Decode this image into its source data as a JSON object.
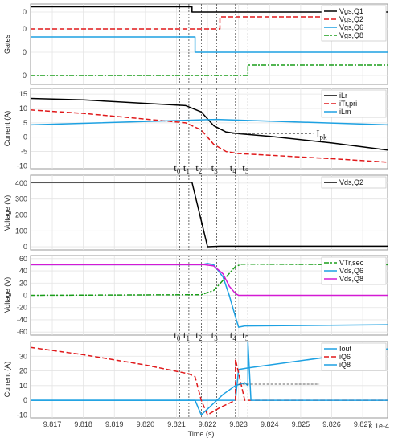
{
  "chart_data": [
    {
      "type": "line",
      "ylabel": "Gates",
      "ylim": [
        0,
        1
      ],
      "yticks": [
        "0",
        "0",
        "0",
        "0"
      ],
      "grid": true,
      "legend": "top-right",
      "series": [
        {
          "name": "Vgs,Q1",
          "color": "#000000",
          "dash": "",
          "x": [
            9.8163,
            9.8215,
            9.8215,
            9.8278
          ],
          "y": [
            0.965,
            0.965,
            0.9,
            0.9
          ]
        },
        {
          "name": "Vgs,Q2",
          "color": "#e0191b",
          "dash": "6,3",
          "x": [
            9.8163,
            9.8224,
            9.8224,
            9.8278
          ],
          "y": [
            0.69,
            0.69,
            0.84,
            0.84
          ]
        },
        {
          "name": "Vgs,Q6",
          "color": "#1da1e2",
          "dash": "",
          "x": [
            9.8163,
            9.8216,
            9.8216,
            9.8278
          ],
          "y": [
            0.59,
            0.59,
            0.4,
            0.4
          ]
        },
        {
          "name": "Vgs,Q8",
          "color": "#1a9e1a",
          "dash": "6,2,2,2",
          "x": [
            9.8163,
            9.8233,
            9.8233,
            9.8278
          ],
          "y": [
            0.11,
            0.11,
            0.24,
            0.24
          ]
        }
      ]
    },
    {
      "type": "line",
      "ylabel": "Current (A)",
      "ylim": [
        -11,
        17
      ],
      "yticks": [
        -10,
        -5,
        0,
        5,
        10,
        15
      ],
      "grid": true,
      "legend": "top-right",
      "annotations": [
        {
          "text": "I",
          "sub": "pk"
        }
      ],
      "series": [
        {
          "name": "iLr",
          "color": "#000000",
          "dash": "",
          "x": [
            9.8163,
            9.818,
            9.82,
            9.8213,
            9.8218,
            9.8222,
            9.8226,
            9.823,
            9.824,
            9.826,
            9.8278
          ],
          "y": [
            13.5,
            13.0,
            11.8,
            11.0,
            8.8,
            4.0,
            1.8,
            1.2,
            0.3,
            -2.0,
            -4.5
          ]
        },
        {
          "name": "iTr,pri",
          "color": "#e0191b",
          "dash": "6,3",
          "x": [
            9.8163,
            9.818,
            9.82,
            9.8213,
            9.8218,
            9.8222,
            9.8226,
            9.823,
            9.824,
            9.826,
            9.8278
          ],
          "y": [
            9.5,
            8.3,
            6.3,
            5.0,
            2.5,
            -2.5,
            -5.0,
            -5.7,
            -6.3,
            -7.5,
            -8.7
          ]
        },
        {
          "name": "iLm",
          "color": "#1da1e2",
          "dash": "",
          "x": [
            9.8163,
            9.8223,
            9.8278
          ],
          "y": [
            4.3,
            6.2,
            4.3
          ]
        }
      ]
    },
    {
      "type": "line",
      "ylabel": "Voltage (V)",
      "ylim": [
        -20,
        450
      ],
      "yticks": [
        0,
        100,
        200,
        300,
        400
      ],
      "grid": true,
      "legend": "top-right",
      "series": [
        {
          "name": "Vds,Q2",
          "color": "#000000",
          "dash": "",
          "x": [
            9.8163,
            9.8215,
            9.822,
            9.8224,
            9.8278
          ],
          "y": [
            405,
            405,
            0,
            3,
            3
          ]
        }
      ]
    },
    {
      "type": "line",
      "ylabel": "Voltage (V)",
      "ylim": [
        -65,
        65
      ],
      "yticks": [
        -60,
        -40,
        -20,
        0,
        20,
        40,
        60
      ],
      "grid": true,
      "legend": "top-right",
      "series": [
        {
          "name": "VTr,sec",
          "color": "#1a9e1a",
          "dash": "6,2,2,2",
          "x": [
            9.8163,
            9.8218,
            9.8222,
            9.8226,
            9.8229,
            9.8231,
            9.8278
          ],
          "y": [
            0,
            1,
            8,
            30,
            47,
            51,
            50
          ]
        },
        {
          "name": "Vds,Q6",
          "color": "#1da1e2",
          "dash": "",
          "x": [
            9.8163,
            9.8218,
            9.822,
            9.8222,
            9.8225,
            9.8227,
            9.8229,
            9.823,
            9.8232,
            9.8278
          ],
          "y": [
            50,
            50,
            52,
            50,
            30,
            0,
            -35,
            -52,
            -50,
            -48
          ]
        },
        {
          "name": "Vds,Q8",
          "color": "#d41ad4",
          "dash": "",
          "x": [
            9.8163,
            9.8219,
            9.8222,
            9.8225,
            9.8227,
            9.8229,
            9.823,
            9.8278
          ],
          "y": [
            50,
            50,
            48,
            35,
            15,
            3,
            0,
            0
          ]
        }
      ]
    },
    {
      "type": "line",
      "ylabel": "Current (A)",
      "ylim": [
        -12,
        40
      ],
      "yticks": [
        -10,
        0,
        10,
        20,
        30
      ],
      "grid": true,
      "legend": "top-right",
      "xlabel": "Time (s)",
      "xticks": [
        "9.817",
        "9.818",
        "9.819",
        "9.820",
        "9.821",
        "9.822",
        "9.823",
        "9.824",
        "9.825",
        "9.826",
        "9.827"
      ],
      "x_exponent": "× 1e-4",
      "series": [
        {
          "name": "Iout",
          "color": "#1da1e2",
          "dash": "",
          "x": [
            9.8163,
            9.8229,
            9.823,
            9.8233,
            9.8278
          ],
          "y": [
            0,
            0,
            21,
            22,
            35
          ]
        },
        {
          "name": "iQ6",
          "color": "#e0191b",
          "dash": "6,3",
          "x": [
            9.8163,
            9.818,
            9.82,
            9.8214,
            9.8216,
            9.8218,
            9.822,
            9.8224,
            9.8229,
            9.8229,
            9.8232,
            9.8278
          ],
          "y": [
            36,
            31,
            24,
            18,
            16,
            0,
            -10,
            -5,
            0,
            28,
            0,
            0
          ]
        },
        {
          "name": "iQ8",
          "color": "#1da1e2",
          "dash": "",
          "x": [
            9.8163,
            9.8216,
            9.8218,
            9.822,
            9.8225,
            9.8229,
            9.8232,
            9.8233,
            9.8233,
            9.8234,
            9.8278
          ],
          "y": [
            0,
            0,
            -10,
            -6,
            4,
            10,
            12,
            10,
            40,
            0,
            0
          ]
        }
      ]
    }
  ],
  "time_markers": {
    "labels": [
      "t",
      "t",
      "t",
      "t",
      "t",
      "t"
    ],
    "subs": [
      "0",
      "1",
      "2",
      "3",
      "4",
      "5"
    ],
    "x": [
      9.8211,
      9.8214,
      9.8218,
      9.8223,
      9.8229,
      9.8233
    ]
  }
}
